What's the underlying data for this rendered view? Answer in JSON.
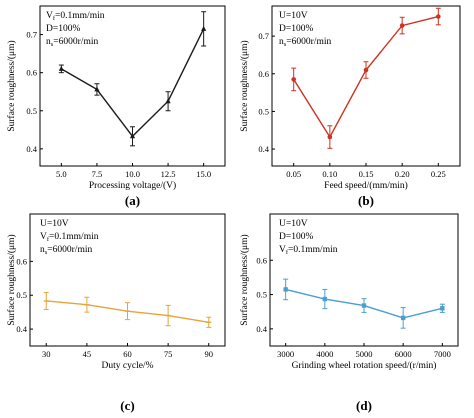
{
  "chart_data": [
    {
      "id": "a",
      "type": "line",
      "panel_label": "(a)",
      "color": "#1a1a1a",
      "marker": "triangle",
      "x": [
        5.0,
        7.5,
        10.0,
        12.5,
        15.0
      ],
      "values": [
        0.61,
        0.556,
        0.433,
        0.525,
        0.715
      ],
      "errors": [
        0.01,
        0.015,
        0.025,
        0.025,
        0.045
      ],
      "xticks": [
        "5.0",
        "7.5",
        "10.0",
        "12.5",
        "15.0"
      ],
      "yticks": [
        "0.4",
        "0.5",
        "0.6",
        "0.7"
      ],
      "xlim": [
        3.5,
        16.5
      ],
      "ylim": [
        0.355,
        0.775
      ],
      "xlabel": "Processing voltage/(V)",
      "ylabel": "Surface roughness/(μm)",
      "annotations": [
        {
          "main": "V",
          "sub": "f",
          "rest": "=0.1mm/min"
        },
        {
          "main": "D=100%",
          "sub": "",
          "rest": ""
        },
        {
          "main": "n",
          "sub": "s",
          "rest": "=6000r/min"
        }
      ]
    },
    {
      "id": "b",
      "type": "line",
      "panel_label": "(b)",
      "color": "#cc3322",
      "marker": "circle",
      "x": [
        0.05,
        0.1,
        0.15,
        0.2,
        0.25
      ],
      "values": [
        0.585,
        0.432,
        0.61,
        0.728,
        0.752
      ],
      "errors": [
        0.03,
        0.03,
        0.022,
        0.022,
        0.022
      ],
      "xticks": [
        "0.05",
        "0.10",
        "0.15",
        "0.20",
        "0.25"
      ],
      "yticks": [
        "0.4",
        "0.5",
        "0.6",
        "0.7"
      ],
      "xlim": [
        0.02,
        0.28
      ],
      "ylim": [
        0.355,
        0.78
      ],
      "xlabel": "Feed speed/(mm/min)",
      "ylabel": "Surface roughness/(μm)",
      "annotations": [
        {
          "main": "U=10V",
          "sub": "",
          "rest": ""
        },
        {
          "main": "D=100%",
          "sub": "",
          "rest": ""
        },
        {
          "main": "n",
          "sub": "s",
          "rest": "=6000r/min"
        }
      ]
    },
    {
      "id": "c",
      "type": "line",
      "panel_label": "(c)",
      "color": "#e8a33c",
      "marker": "line",
      "x": [
        30,
        45,
        60,
        75,
        90
      ],
      "values": [
        0.483,
        0.472,
        0.453,
        0.44,
        0.42
      ],
      "errors": [
        0.025,
        0.022,
        0.025,
        0.03,
        0.015
      ],
      "xticks": [
        "30",
        "45",
        "60",
        "75",
        "90"
      ],
      "yticks": [
        "0.4",
        "0.5",
        "0.6"
      ],
      "xlim": [
        24,
        96
      ],
      "ylim": [
        0.35,
        0.74
      ],
      "xlabel": "Duty cycle/%",
      "ylabel": "Surface roughness/(μm)",
      "annotations": [
        {
          "main": "U=10V",
          "sub": "",
          "rest": ""
        },
        {
          "main": "V",
          "sub": "f",
          "rest": "=0.1mm/min"
        },
        {
          "main": "n",
          "sub": "s",
          "rest": "=6000r/min"
        }
      ]
    },
    {
      "id": "d",
      "type": "line",
      "panel_label": "(d)",
      "color": "#4a9fcf",
      "marker": "square",
      "x": [
        3000,
        4000,
        5000,
        6000,
        7000
      ],
      "values": [
        0.515,
        0.487,
        0.468,
        0.432,
        0.46
      ],
      "errors": [
        0.03,
        0.028,
        0.02,
        0.03,
        0.012
      ],
      "xticks": [
        "3000",
        "4000",
        "5000",
        "6000",
        "7000"
      ],
      "yticks": [
        "0.4",
        "0.5",
        "0.6"
      ],
      "xlim": [
        2600,
        7400
      ],
      "ylim": [
        0.35,
        0.735
      ],
      "xlabel": "Grinding wheel rotation speed/(r/min)",
      "ylabel": "Surface roughness/(μm)",
      "annotations": [
        {
          "main": "U=10V",
          "sub": "",
          "rest": ""
        },
        {
          "main": "D=100%",
          "sub": "",
          "rest": ""
        },
        {
          "main": "V",
          "sub": "f",
          "rest": "=0.1mm/min"
        }
      ]
    }
  ]
}
